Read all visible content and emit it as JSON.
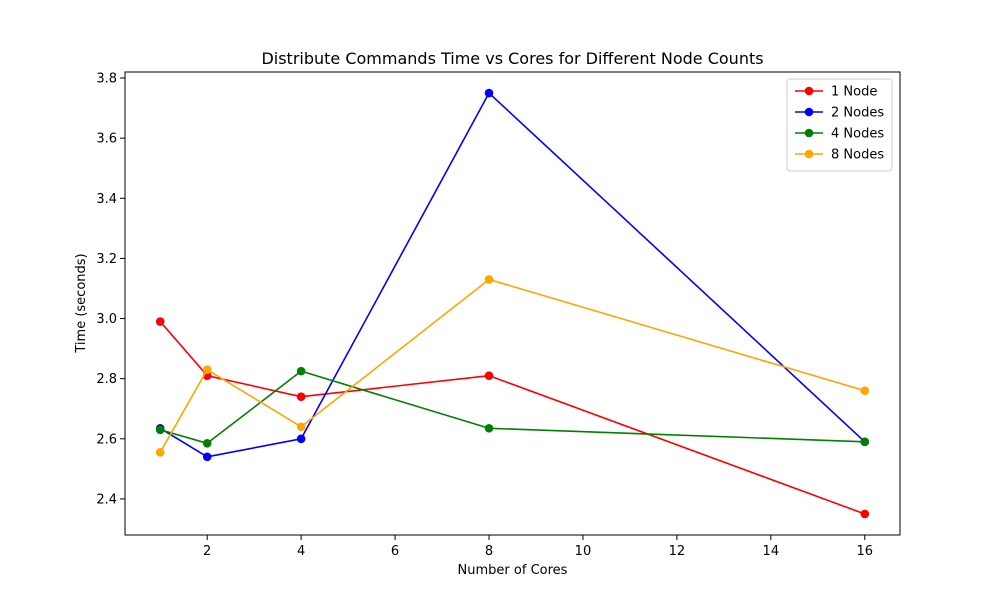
{
  "chart_data": {
    "type": "line",
    "title": "Distribute Commands Time vs Cores for Different Node Counts",
    "xlabel": "Number of Cores",
    "ylabel": "Time (seconds)",
    "x": [
      1,
      2,
      4,
      8,
      16
    ],
    "xlim": [
      0.25,
      16.75
    ],
    "ylim": [
      2.28,
      3.82
    ],
    "xticks": [
      2,
      4,
      6,
      8,
      10,
      12,
      14,
      16
    ],
    "yticks": [
      2.4,
      2.6,
      2.8,
      3.0,
      3.2,
      3.4,
      3.6,
      3.8
    ],
    "legend_position": "top-right",
    "grid": false,
    "series": [
      {
        "name": "1 Node",
        "color": "#ff0000",
        "values": [
          2.99,
          2.81,
          2.74,
          2.81,
          2.35
        ]
      },
      {
        "name": "2 Nodes",
        "color": "#0000ff",
        "values": [
          2.635,
          2.54,
          2.6,
          3.75,
          2.59
        ]
      },
      {
        "name": "4 Nodes",
        "color": "#008000",
        "values": [
          2.63,
          2.585,
          2.825,
          2.635,
          2.59
        ]
      },
      {
        "name": "8 Nodes",
        "color": "#ffa500",
        "values": [
          2.555,
          2.83,
          2.64,
          3.13,
          2.76
        ]
      }
    ]
  }
}
